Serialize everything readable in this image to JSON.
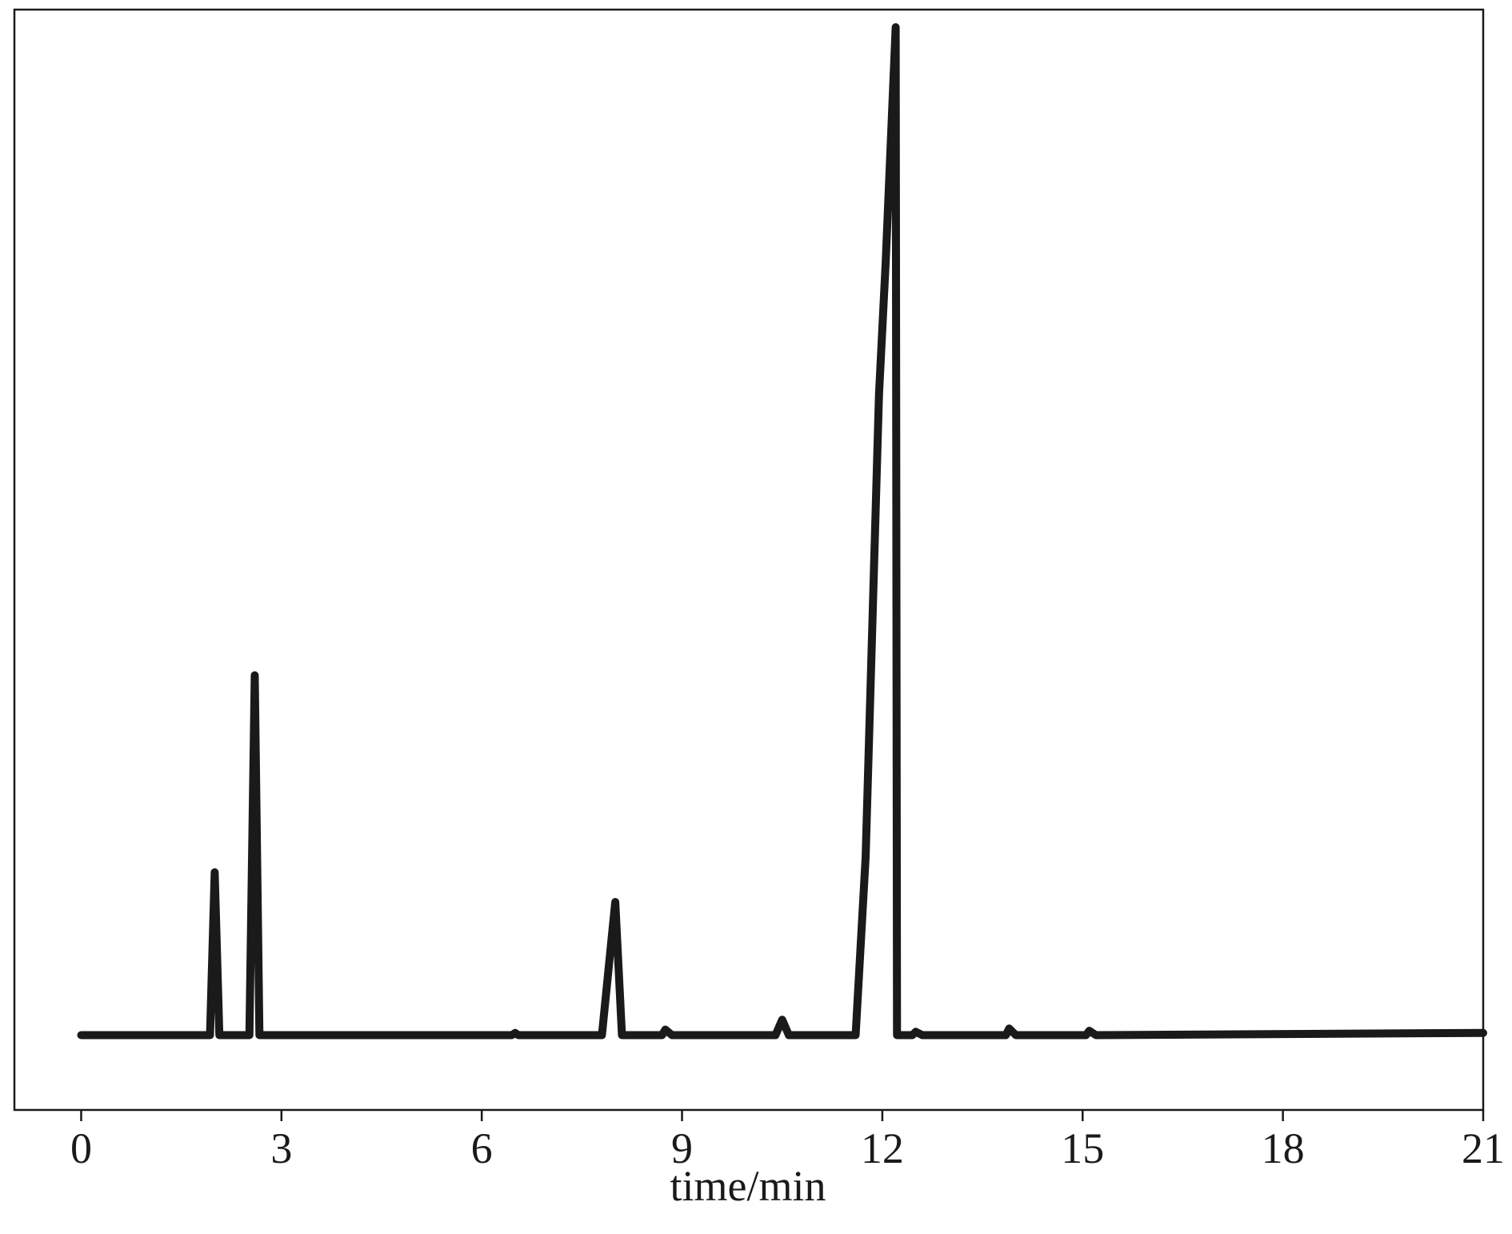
{
  "chart_data": {
    "type": "line",
    "x_label": "time/min",
    "x": [
      0,
      1.93,
      2.0,
      2.07,
      2.52,
      2.6,
      2.67,
      6.45,
      6.5,
      6.55,
      7.8,
      8.0,
      8.1,
      8.7,
      8.75,
      8.85,
      10.4,
      10.5,
      10.6,
      11.6,
      11.75,
      11.95,
      12.05,
      12.2,
      12.22,
      12.45,
      12.5,
      12.6,
      13.85,
      13.9,
      14.0,
      15.05,
      15.1,
      15.2,
      21
    ],
    "series": [
      {
        "color": "#1a1a1a",
        "values": [
          6.8,
          6.8,
          21.6,
          6.8,
          6.8,
          39.5,
          6.8,
          6.8,
          7.0,
          6.8,
          6.8,
          18.9,
          6.8,
          6.8,
          7.3,
          6.8,
          6.8,
          8.2,
          6.8,
          6.8,
          23,
          65,
          77,
          98.4,
          6.8,
          6.8,
          7.1,
          6.8,
          6.8,
          7.4,
          6.8,
          6.8,
          7.2,
          6.8,
          7.0
        ]
      }
    ],
    "xlim": [
      -1,
      21
    ],
    "ylim": [
      0,
      100
    ],
    "xticks": [
      0,
      3,
      6,
      9,
      12,
      15,
      18,
      21
    ]
  }
}
